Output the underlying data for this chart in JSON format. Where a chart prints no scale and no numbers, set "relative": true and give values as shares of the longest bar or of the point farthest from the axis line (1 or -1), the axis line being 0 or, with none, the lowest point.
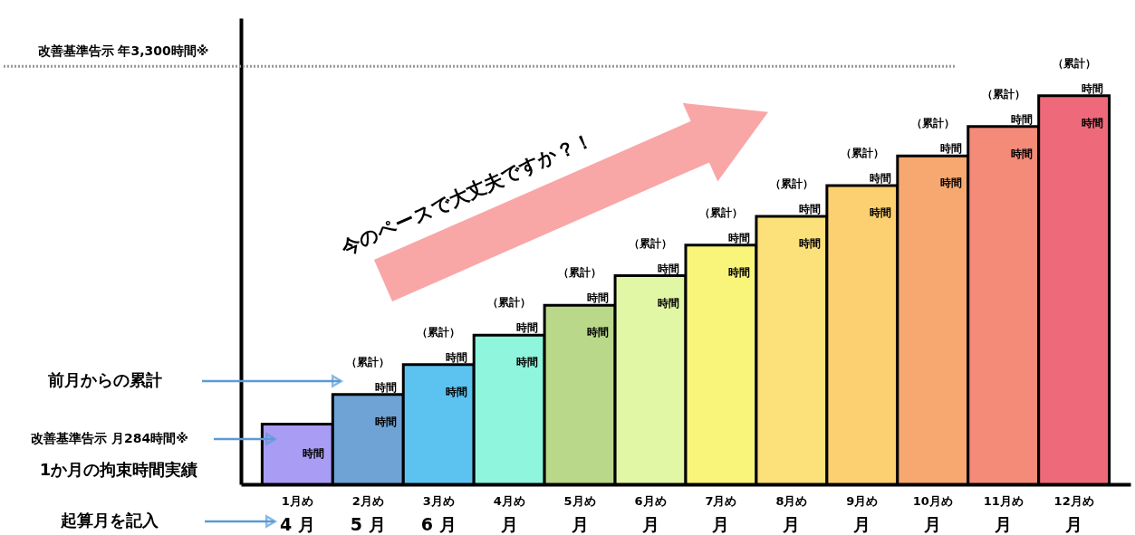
{
  "chart_data": {
    "type": "bar",
    "relative": true,
    "categories": [
      "1月め",
      "2月め",
      "3月め",
      "4月め",
      "5月め",
      "6月め",
      "7月め",
      "8月め",
      "9月め",
      "10月め",
      "11月め",
      "12月め"
    ],
    "values": [
      0.155,
      0.231,
      0.308,
      0.384,
      0.461,
      0.537,
      0.616,
      0.69,
      0.769,
      0.845,
      0.921,
      1
    ],
    "colors": [
      "#a99cf5",
      "#6fa3d6",
      "#5cc3f0",
      "#8ff5dd",
      "#b9d88a",
      "#e2f7a5",
      "#f9f57a",
      "#fce07a",
      "#fcd070",
      "#f7a870",
      "#f48a78",
      "#ee6a7a"
    ],
    "ref_lines": [
      {
        "axis": "y",
        "value": 1.076,
        "label": "改善基準告示 年3,300時間※",
        "line_style": "dotted",
        "color": "#999999"
      }
    ],
    "annotations": [
      "今のペースで大丈夫ですか？！",
      "前月からの累計",
      "改善基準告示 月284時間※",
      "1か月の拘束時間実績",
      "起算月を記入",
      "時間",
      "（累計）",
      "時間",
      "時間",
      "（累計）",
      "時間",
      "時間",
      "（累計）",
      "時間",
      "時間",
      "（累計）",
      "時間",
      "時間",
      "（累計）",
      "時間",
      "時間",
      "（累計）",
      "時間",
      "時間",
      "（累計）",
      "時間",
      "時間",
      "（累計）",
      "時間",
      "時間",
      "（累計）",
      "時間",
      "時間",
      "（累計）",
      "時間",
      "時間",
      "（累計）",
      "時間",
      "時間",
      "4 月",
      "5 月",
      "6 月",
      "月",
      "月",
      "月",
      "月",
      "月",
      "月",
      "月",
      "月",
      "月"
    ]
  }
}
